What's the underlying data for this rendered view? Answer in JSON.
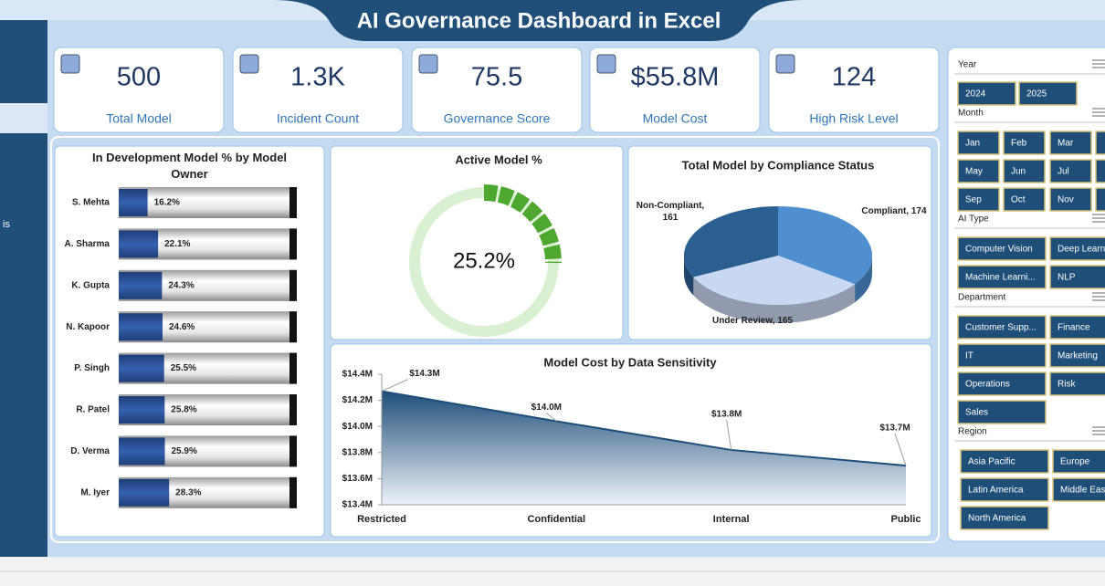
{
  "header": {
    "title": "AI Governance Dashboard in Excel"
  },
  "sidebar": {
    "label": "is"
  },
  "kpis": [
    {
      "value": 500,
      "label": "Total Model"
    },
    {
      "value": "1.3K",
      "label": "Incident Count"
    },
    {
      "value": 75.5,
      "label": "Governance Score"
    },
    {
      "value": "$55.8M",
      "label": "Model Cost"
    },
    {
      "value": 124,
      "label": "High Risk Level"
    }
  ],
  "slicers": [
    {
      "title": "Year",
      "items": [
        "2024",
        "2025"
      ]
    },
    {
      "title": "Month",
      "items": [
        "Jan",
        "Feb",
        "Mar",
        "May",
        "Jun",
        "Jul",
        "Sep",
        "Oct",
        "Nov"
      ]
    },
    {
      "title": "AI Type",
      "items": [
        "Computer Vision",
        "Deep Learn",
        "Machine Learni...",
        "NLP"
      ]
    },
    {
      "title": "Department",
      "items": [
        "Customer Supp...",
        "Finance",
        "IT",
        "Marketing",
        "Operations",
        "Risk",
        "Sales"
      ]
    },
    {
      "title": "Region",
      "items": [
        "Asia Pacific",
        "Europe",
        "Latin America",
        "Middle Eas",
        "North America"
      ]
    }
  ],
  "chart_data": [
    {
      "type": "hbar",
      "title": "In Development Model % by Model Owner",
      "categories": [
        "S. Mehta",
        "A. Sharma",
        "K. Gupta",
        "N. Kapoor",
        "P. Singh",
        "R. Patel",
        "D. Verma",
        "M. Iyer"
      ],
      "values": [
        16.2,
        22.1,
        24.3,
        24.6,
        25.5,
        25.8,
        25.9,
        28.3
      ],
      "value_labels": [
        "16.2%",
        "22.1%",
        "24.3%",
        "24.6%",
        "25.5%",
        "25.8%",
        "25.9%",
        "28.3%"
      ],
      "xlim": [
        0,
        100
      ],
      "color": "#2f5597"
    },
    {
      "type": "donut",
      "title": "Active Model %",
      "values": [
        25.2
      ],
      "value_labels": [
        "25.2%"
      ],
      "ylim": [
        0,
        100
      ],
      "color": "#4ea72e"
    },
    {
      "type": "pie",
      "title": "Total Model by Compliance Status",
      "categories": [
        "Compliant",
        "Under Review",
        "Non-Compliant"
      ],
      "values": [
        174,
        165,
        161
      ],
      "value_labels": [
        "Compliant, 174",
        "Under Review, 165",
        "Non-Compliant, 161"
      ],
      "colors": [
        "#4f8fd0",
        "#c9d7f0",
        "#2c5f91"
      ]
    },
    {
      "type": "area",
      "title": "Model Cost by Data Sensitivity",
      "categories": [
        "Restricted",
        "Confidential",
        "Internal",
        "Public"
      ],
      "values": [
        14270000,
        14040000,
        13820000,
        13700000
      ],
      "value_labels": [
        "$14.3M",
        "$14.0M",
        "$13.8M",
        "$13.7M"
      ],
      "ylim": [
        13400000,
        14400000
      ],
      "yticks": [
        {
          "value": 13400000,
          "label": "$13.4M"
        },
        {
          "value": 13600000,
          "label": "$13.6M"
        },
        {
          "value": 13800000,
          "label": "$13.8M"
        },
        {
          "value": 14000000,
          "label": "$14.0M"
        },
        {
          "value": 14200000,
          "label": "$14.2M"
        },
        {
          "value": 14400000,
          "label": "$14.4M"
        }
      ],
      "color": "#1f4e79"
    }
  ]
}
